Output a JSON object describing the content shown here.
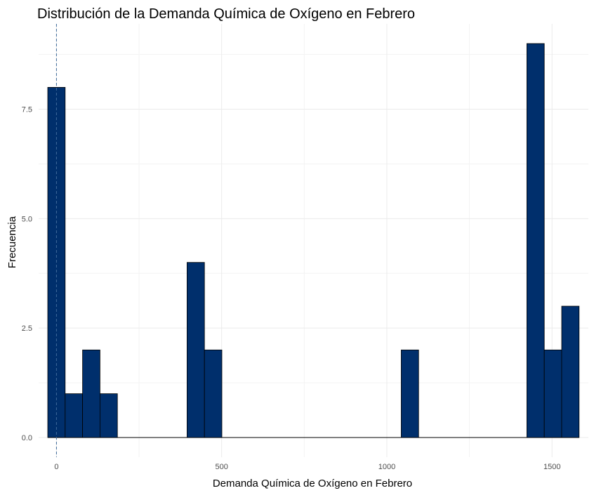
{
  "chart_data": {
    "type": "bar",
    "title": "Distribución de la Demanda Química de Oxígeno en Febrero",
    "xlabel": "Demanda Química de Oxígeno en Febrero",
    "ylabel": "Frecuencia",
    "bin_width": 52.7,
    "bins": [
      {
        "x_start": -26.35,
        "x_end": 26.35,
        "count": 8
      },
      {
        "x_start": 26.35,
        "x_end": 79.05,
        "count": 1
      },
      {
        "x_start": 79.05,
        "x_end": 131.75,
        "count": 2
      },
      {
        "x_start": 131.75,
        "x_end": 184.45,
        "count": 1
      },
      {
        "x_start": 395.25,
        "x_end": 447.95,
        "count": 4
      },
      {
        "x_start": 447.95,
        "x_end": 500.65,
        "count": 2
      },
      {
        "x_start": 1043.45,
        "x_end": 1096.15,
        "count": 2
      },
      {
        "x_start": 1423.8,
        "x_end": 1476.5,
        "count": 9
      },
      {
        "x_start": 1476.5,
        "x_end": 1529.2,
        "count": 2
      },
      {
        "x_start": 1529.2,
        "x_end": 1581.9,
        "count": 3
      }
    ],
    "xlim": [
      -54,
      1610
    ],
    "ylim": [
      -0.45,
      9.45
    ],
    "x_ticks": [
      0,
      500,
      1000,
      1500
    ],
    "x_tick_labels": [
      "0",
      "500",
      "1000",
      "1500"
    ],
    "y_ticks": [
      0,
      2.5,
      5,
      7.5
    ],
    "y_tick_labels": [
      "0.0",
      "2.5",
      "5.0",
      "7.5"
    ],
    "vline_x": 0,
    "grid": true,
    "colors": {
      "bar_fill": "#002f6c",
      "bar_outline": "#000000",
      "vline": "#3f6a9a",
      "grid_major": "#ebebeb",
      "grid_minor": "#f3f3f3"
    }
  }
}
